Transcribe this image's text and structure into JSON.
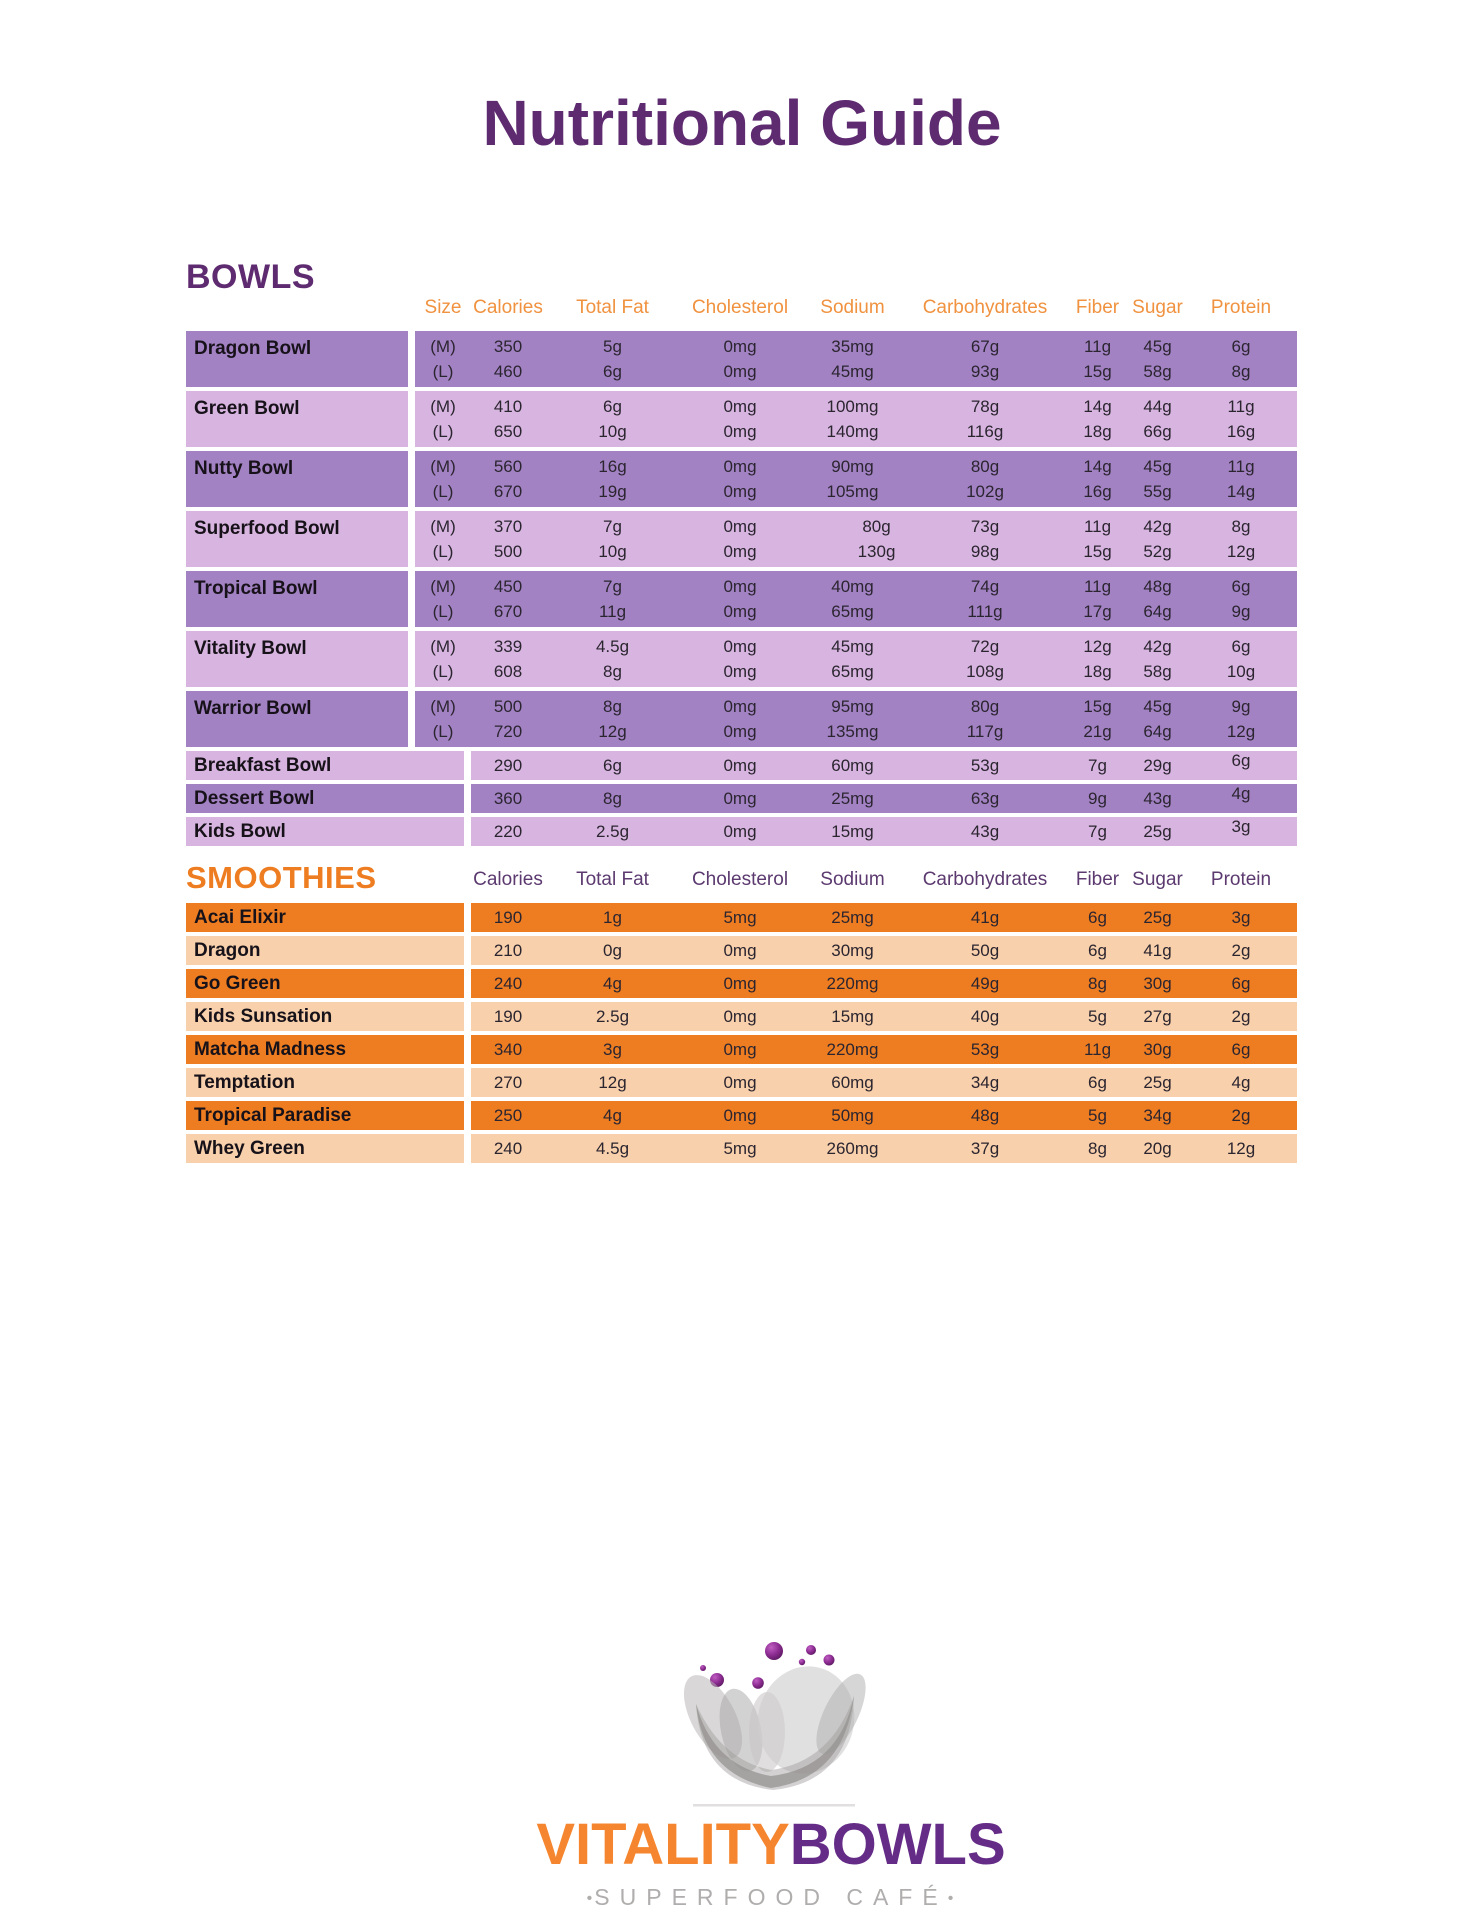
{
  "title": "Nutritional Guide",
  "colors": {
    "title_purple": "#5e2a70",
    "bowl_row_dark": "#a382c4",
    "bowl_row_light": "#d8b5e0",
    "bowls_column_header_orange": "#f0923f",
    "smoothie_row_dark": "#ee7d22",
    "smoothie_row_light": "#f8d0ab",
    "smoothies_column_header_purple": "#5c3a70",
    "brand_orange": "#f5862f",
    "brand_purple": "#652c87",
    "tagline_gray": "#b0adad"
  },
  "bowls": {
    "heading": "BOWLS",
    "columns": [
      "Size",
      "Calories",
      "Total Fat",
      "Cholesterol",
      "Sodium",
      "Carbohydrates",
      "Fiber",
      "Sugar",
      "Protein"
    ],
    "rows": [
      {
        "name": "Dragon Bowl",
        "sizes": [
          {
            "size": "(M)",
            "values": [
              "350",
              "5g",
              "0mg",
              "35mg",
              "67g",
              "11g",
              "45g",
              "6g"
            ]
          },
          {
            "size": "(L)",
            "values": [
              "460",
              "6g",
              "0mg",
              "45mg",
              "93g",
              "15g",
              "58g",
              "8g"
            ]
          }
        ]
      },
      {
        "name": "Green Bowl",
        "sizes": [
          {
            "size": "(M)",
            "values": [
              "410",
              "6g",
              "0mg",
              "100mg",
              "78g",
              "14g",
              "44g",
              "11g"
            ]
          },
          {
            "size": "(L)",
            "values": [
              "650",
              "10g",
              "0mg",
              "140mg",
              "116g",
              "18g",
              "66g",
              "16g"
            ]
          }
        ]
      },
      {
        "name": "Nutty Bowl",
        "sizes": [
          {
            "size": "(M)",
            "values": [
              "560",
              "16g",
              "0mg",
              "90mg",
              "80g",
              "14g",
              "45g",
              "11g"
            ]
          },
          {
            "size": "(L)",
            "values": [
              "670",
              "19g",
              "0mg",
              "105mg",
              "102g",
              "16g",
              "55g",
              "14g"
            ]
          }
        ]
      },
      {
        "name": "Superfood Bowl",
        "sodium_shift": true,
        "sizes": [
          {
            "size": "(M)",
            "values": [
              "370",
              "7g",
              "0mg",
              "80g",
              "73g",
              "11g",
              "42g",
              "8g"
            ]
          },
          {
            "size": "(L)",
            "values": [
              "500",
              "10g",
              "0mg",
              "130g",
              "98g",
              "15g",
              "52g",
              "12g"
            ]
          }
        ]
      },
      {
        "name": "Tropical Bowl",
        "sizes": [
          {
            "size": "(M)",
            "values": [
              "450",
              "7g",
              "0mg",
              "40mg",
              "74g",
              "11g",
              "48g",
              "6g"
            ]
          },
          {
            "size": "(L)",
            "values": [
              "670",
              "11g",
              "0mg",
              "65mg",
              "111g",
              "17g",
              "64g",
              "9g"
            ]
          }
        ]
      },
      {
        "name": "Vitality Bowl",
        "sizes": [
          {
            "size": "(M)",
            "values": [
              "339",
              "4.5g",
              "0mg",
              "45mg",
              "72g",
              "12g",
              "42g",
              "6g"
            ]
          },
          {
            "size": "(L)",
            "values": [
              "608",
              "8g",
              "0mg",
              "65mg",
              "108g",
              "18g",
              "58g",
              "10g"
            ]
          }
        ]
      },
      {
        "name": "Warrior Bowl",
        "sizes": [
          {
            "size": "(M)",
            "values": [
              "500",
              "8g",
              "0mg",
              "95mg",
              "80g",
              "15g",
              "45g",
              "9g"
            ]
          },
          {
            "size": "(L)",
            "values": [
              "720",
              "12g",
              "0mg",
              "135mg",
              "117g",
              "21g",
              "64g",
              "12g"
            ]
          }
        ]
      },
      {
        "name": "Breakfast Bowl",
        "values": [
          "290",
          "6g",
          "0mg",
          "60mg",
          "53g",
          "7g",
          "29g",
          "6g"
        ]
      },
      {
        "name": "Dessert Bowl",
        "values": [
          "360",
          "8g",
          "0mg",
          "25mg",
          "63g",
          "9g",
          "43g",
          "4g"
        ]
      },
      {
        "name": "Kids Bowl",
        "values": [
          "220",
          "2.5g",
          "0mg",
          "15mg",
          "43g",
          "7g",
          "25g",
          "3g"
        ]
      }
    ]
  },
  "smoothies": {
    "heading": "SMOOTHIES",
    "columns": [
      "Calories",
      "Total Fat",
      "Cholesterol",
      "Sodium",
      "Carbohydrates",
      "Fiber",
      "Sugar",
      "Protein"
    ],
    "rows": [
      {
        "name": "Acai Elixir",
        "values": [
          "190",
          "1g",
          "5mg",
          "25mg",
          "41g",
          "6g",
          "25g",
          "3g"
        ]
      },
      {
        "name": "Dragon",
        "values": [
          "210",
          "0g",
          "0mg",
          "30mg",
          "50g",
          "6g",
          "41g",
          "2g"
        ]
      },
      {
        "name": "Go Green",
        "values": [
          "240",
          "4g",
          "0mg",
          "220mg",
          "49g",
          "8g",
          "30g",
          "6g"
        ]
      },
      {
        "name": "Kids Sunsation",
        "values": [
          "190",
          "2.5g",
          "0mg",
          "15mg",
          "40g",
          "5g",
          "27g",
          "2g"
        ]
      },
      {
        "name": "Matcha Madness",
        "values": [
          "340",
          "3g",
          "0mg",
          "220mg",
          "53g",
          "11g",
          "30g",
          "6g"
        ]
      },
      {
        "name": "Temptation",
        "values": [
          "270",
          "12g",
          "0mg",
          "60mg",
          "34g",
          "6g",
          "25g",
          "4g"
        ]
      },
      {
        "name": "Tropical Paradise",
        "values": [
          "250",
          "4g",
          "0mg",
          "50mg",
          "48g",
          "5g",
          "34g",
          "2g"
        ]
      },
      {
        "name": "Whey Green",
        "values": [
          "240",
          "4.5g",
          "5mg",
          "260mg",
          "37g",
          "8g",
          "20g",
          "12g"
        ]
      }
    ]
  },
  "logo": {
    "brand_primary": "VITALITY",
    "brand_secondary": "BOWLS",
    "tagline": "SUPERFOOD CAFÉ",
    "tagline_bullet": "•",
    "icon": "abstract-bowl-with-berries-icon"
  }
}
